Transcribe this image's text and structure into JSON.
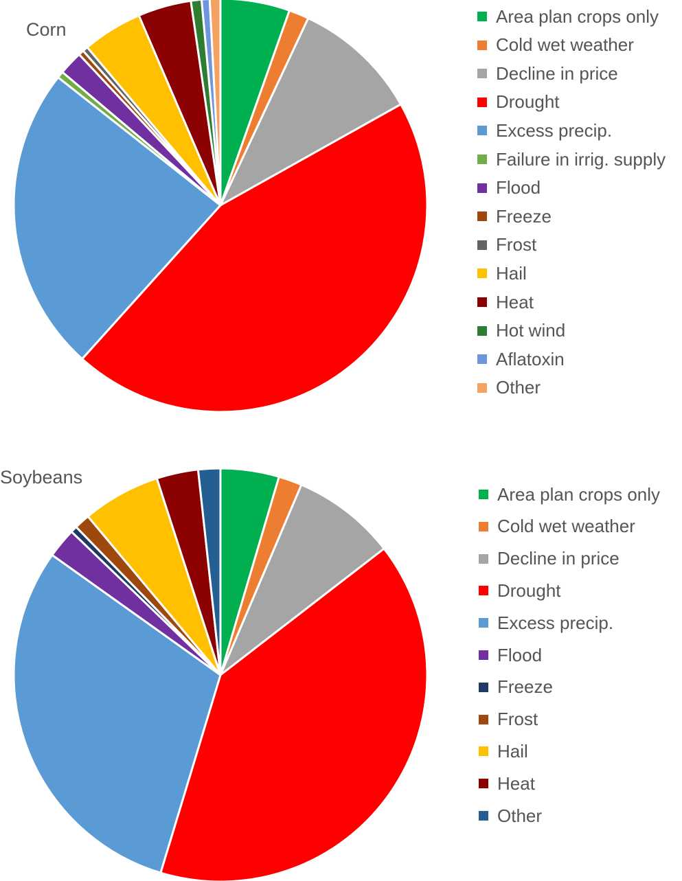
{
  "chart_data": [
    {
      "type": "pie",
      "title": "Corn",
      "legend_position": "right",
      "series": [
        {
          "name": "Area plan crops only",
          "value": 5.2,
          "color": "#00B050"
        },
        {
          "name": "Cold wet weather",
          "value": 1.5,
          "color": "#ED7D31"
        },
        {
          "name": "Decline in price",
          "value": 9.5,
          "color": "#A5A5A5"
        },
        {
          "name": "Drought",
          "value": 43.0,
          "color": "#FF0000"
        },
        {
          "name": "Excess precip.",
          "value": 23.0,
          "color": "#5B9BD5"
        },
        {
          "name": "Failure in irrig. supply",
          "value": 0.5,
          "color": "#70AD47"
        },
        {
          "name": "Flood",
          "value": 1.8,
          "color": "#7030A0"
        },
        {
          "name": "Freeze",
          "value": 0.4,
          "color": "#9E480E"
        },
        {
          "name": "Frost",
          "value": 0.4,
          "color": "#636363"
        },
        {
          "name": "Hail",
          "value": 4.5,
          "color": "#FFC000"
        },
        {
          "name": "Heat",
          "value": 4.0,
          "color": "#8B0000"
        },
        {
          "name": "Hot wind",
          "value": 0.8,
          "color": "#2E7D32"
        },
        {
          "name": "Aflatoxin",
          "value": 0.6,
          "color": "#6F95DC"
        },
        {
          "name": "Other",
          "value": 0.8,
          "color": "#F4A261"
        }
      ]
    },
    {
      "type": "pie",
      "title": "Soybeans",
      "legend_position": "right",
      "series": [
        {
          "name": "Area plan crops only",
          "value": 4.5,
          "color": "#00B050"
        },
        {
          "name": "Cold wet weather",
          "value": 1.8,
          "color": "#ED7D31"
        },
        {
          "name": "Decline in price",
          "value": 8.0,
          "color": "#A5A5A5"
        },
        {
          "name": "Drought",
          "value": 39.5,
          "color": "#FF0000"
        },
        {
          "name": "Excess precip.",
          "value": 29.7,
          "color": "#5B9BD5"
        },
        {
          "name": "Flood",
          "value": 2.3,
          "color": "#7030A0"
        },
        {
          "name": "Freeze",
          "value": 0.5,
          "color": "#1F3864"
        },
        {
          "name": "Frost",
          "value": 1.2,
          "color": "#9E480E"
        },
        {
          "name": "Hail",
          "value": 6.0,
          "color": "#FFC000"
        },
        {
          "name": "Heat",
          "value": 3.2,
          "color": "#8B0000"
        },
        {
          "name": "Other",
          "value": 1.7,
          "color": "#255E91"
        }
      ]
    }
  ]
}
